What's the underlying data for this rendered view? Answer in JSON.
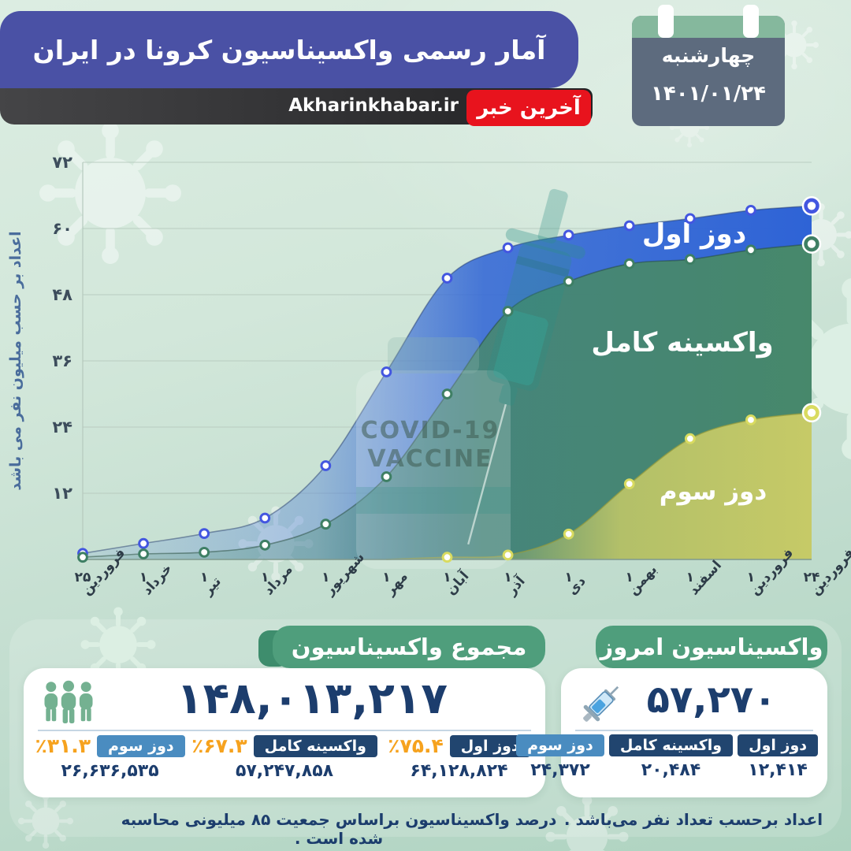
{
  "header": {
    "title": "آمار رسمی واکسیناسیون کرونا در ایران",
    "site": "Akharinkhabar.ir",
    "logo": "آخرین خبر",
    "calendar": {
      "weekday": "چهارشنبه",
      "date": "۱۴۰۱/۰۱/۲۴"
    }
  },
  "colors": {
    "banner": "#4a51a5",
    "logo_red": "#e8131d",
    "calendar_green": "#85b89d",
    "calendar_body": "#5d6b7e",
    "panel_header_green": "#4f9e7c",
    "navy": "#1c3d6d",
    "badge_navy": "#21456f",
    "badge_blue": "#4a8cc0",
    "percent_orange": "#f6a21e",
    "series_blue": "#2e63d6",
    "series_green": "#47886b",
    "series_yellow": "#c6ca67"
  },
  "chart_data": {
    "type": "area",
    "title": "",
    "xlabel": "",
    "ylabel": "اعداد بر حسب میلیون نفر می باشد",
    "unit": "million people",
    "ylim": [
      0,
      72
    ],
    "grid": true,
    "legend_position": "labels-inside-areas",
    "yticks": [
      {
        "v": 72,
        "label": "۷۲"
      },
      {
        "v": 60,
        "label": "۶۰"
      },
      {
        "v": 48,
        "label": "۴۸"
      },
      {
        "v": 36,
        "label": "۳۶"
      },
      {
        "v": 24,
        "label": "۲۴"
      },
      {
        "v": 12,
        "label": "۱۲"
      }
    ],
    "categories": [
      {
        "day": "۲۵",
        "month": "فروردین"
      },
      {
        "day": "۱",
        "month": "خرداد"
      },
      {
        "day": "۱",
        "month": "تیر"
      },
      {
        "day": "۱",
        "month": "مرداد"
      },
      {
        "day": "۱",
        "month": "شهریور"
      },
      {
        "day": "۱",
        "month": "مهر"
      },
      {
        "day": "۱",
        "month": "آبان"
      },
      {
        "day": "۱",
        "month": "آذر"
      },
      {
        "day": "۱",
        "month": "دی"
      },
      {
        "day": "۱",
        "month": "بهمن"
      },
      {
        "day": "۱",
        "month": "اسفند"
      },
      {
        "day": "۱",
        "month": "فروردین"
      },
      {
        "day": "۲۴",
        "month": "فروردین"
      }
    ],
    "series": [
      {
        "name": "دوز اول",
        "key": "first-dose",
        "values": [
          1.1,
          2.9,
          4.7,
          7.5,
          17,
          34,
          51,
          56.5,
          58.8,
          60.5,
          61.8,
          63.3,
          64.1
        ],
        "fill": "#2e63d6",
        "ring": "#4356e0",
        "stroke": "rgba(40,62,110,0.5)",
        "dot_from": 0,
        "start": 0,
        "label": {
          "x": 881,
          "y": 308,
          "size": 34
        }
      },
      {
        "name": "واکسینه کامل",
        "key": "fully-vaccinated",
        "values": [
          0.4,
          1.0,
          1.3,
          2.6,
          6.4,
          15,
          30,
          45,
          50.4,
          53.6,
          54.4,
          56.1,
          57.2
        ],
        "fill": "#47886b",
        "ring": "#3e7f64",
        "stroke": "rgba(35,72,56,0.5)",
        "dot_from": 0,
        "start": 0,
        "label": {
          "x": 866,
          "y": 446,
          "size": 34
        }
      },
      {
        "name": "دوز سوم",
        "key": "third-dose",
        "values": [
          0,
          0,
          0,
          0,
          0,
          0,
          0.4,
          0.8,
          4.6,
          13.7,
          21.9,
          25.3,
          26.6
        ],
        "fill": "#c6ca67",
        "ring": "#d9db60",
        "stroke": "rgba(150,155,60,0.7)",
        "dot_from": 6,
        "start": 5,
        "label": {
          "x": 905,
          "y": 634,
          "size": 31
        }
      }
    ],
    "watermark": {
      "line1": "COVID-19",
      "line2": "VACCINE"
    }
  },
  "totals_panel": {
    "header": "مجموع واکسیناسیون",
    "total": "۱۴۸,۰۱۳,۲۱۷",
    "percent_sign": "٪",
    "stats": [
      {
        "label": "دوز اول",
        "percent": "۷۵.۴",
        "value": "۶۴,۱۲۸,۸۲۴",
        "badge": "navy"
      },
      {
        "label": "واکسینه کامل",
        "percent": "۶۷.۳",
        "value": "۵۷,۲۴۷,۸۵۸",
        "badge": "navy"
      },
      {
        "label": "دوز سوم",
        "percent": "۳۱.۳",
        "value": "۲۶,۶۳۶,۵۳۵",
        "badge": "blue"
      }
    ],
    "note": "درصد واکسیناسیون براساس جمعیت ۸۵ میلیونی محاسبه شده است ."
  },
  "today_panel": {
    "header": "واکسیناسیون امروز",
    "total": "۵۷,۲۷۰",
    "stats": [
      {
        "label": "دوز اول",
        "value": "۱۲,۴۱۴",
        "badge": "navy"
      },
      {
        "label": "واکسینه کامل",
        "value": "۲۰,۴۸۴",
        "badge": "navy"
      },
      {
        "label": "دوز سوم",
        "value": "۲۴,۳۷۲",
        "badge": "blue"
      }
    ],
    "note": "اعداد برحسب تعداد نفر می‌باشد ."
  }
}
